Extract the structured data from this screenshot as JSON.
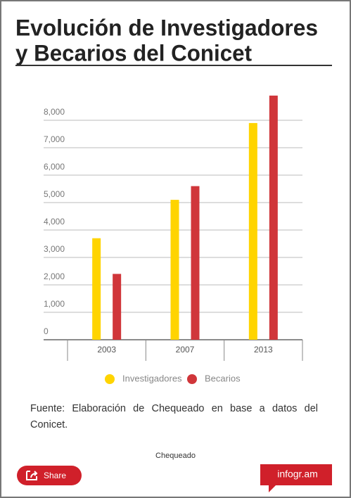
{
  "chart_data": {
    "type": "bar",
    "title": [
      "Evolución de Investigadores",
      "y Becarios del Conicet"
    ],
    "categories": [
      "2003",
      "2007",
      "2013"
    ],
    "series": [
      {
        "name": "Investigadores",
        "color": "#ffd400",
        "values": [
          3700,
          5100,
          7900
        ]
      },
      {
        "name": "Becarios",
        "color": "#d0363a",
        "values": [
          2400,
          5600,
          8900
        ]
      }
    ],
    "ylim": [
      0,
      9000
    ],
    "yticks": [
      0,
      {
        "value": 1000,
        "label": "1,000"
      },
      {
        "value": 2000,
        "label": "2,000"
      },
      {
        "value": 3000,
        "label": "3,000"
      },
      {
        "value": 4000,
        "label": "4,000"
      },
      {
        "value": 5000,
        "label": "5,000"
      },
      {
        "value": 6000,
        "label": "6,000"
      },
      {
        "value": 7000,
        "label": "7,000"
      },
      {
        "value": 8000,
        "label": "8,000"
      }
    ],
    "grid": true
  },
  "footer": {
    "source": "Fuente: Elaboración de Chequeado en base a datos del Conicet.",
    "credit": "Chequeado",
    "share": "Share",
    "brand": "infogr.am"
  }
}
